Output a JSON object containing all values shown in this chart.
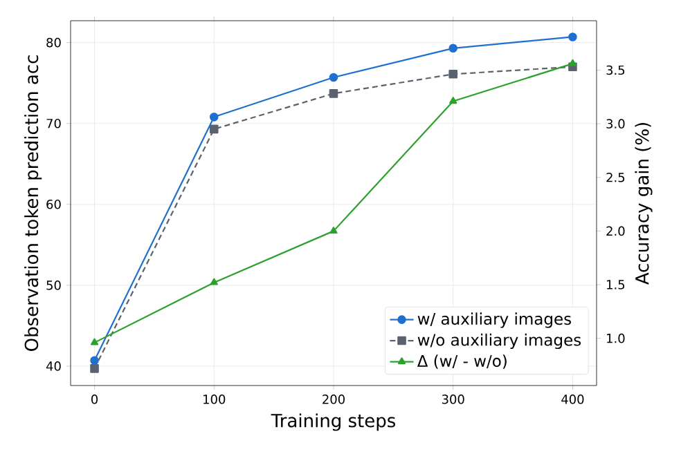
{
  "chart_data": {
    "type": "line",
    "xlabel": "Training steps",
    "ylabel": "Observation token prediction acc",
    "y2label": "Accuracy gain (%)",
    "x": [
      0,
      100,
      200,
      300,
      400
    ],
    "series": [
      {
        "name": "w/ auxiliary images",
        "color": "#1f6fd0",
        "marker": "circle",
        "line_style": "solid",
        "values": [
          40.7,
          70.8,
          75.7,
          79.3,
          80.7
        ]
      },
      {
        "name": "w/o auxiliary images",
        "color": "#5a6270",
        "marker": "square",
        "line_style": "dashed",
        "values": [
          39.7,
          69.3,
          73.7,
          76.1,
          77.0
        ]
      },
      {
        "name": "Δ (w/ - w/o)",
        "color": "#2ca02c",
        "marker": "triangle",
        "line_style": "solid",
        "axis": "y2",
        "values": [
          0.96,
          1.52,
          2.0,
          3.21,
          3.56
        ]
      }
    ],
    "xlim": [
      -20,
      420
    ],
    "xticks": [
      0,
      100,
      200,
      300,
      400
    ],
    "ylim": [
      37.6,
      82.7
    ],
    "yticks": [
      40,
      50,
      60,
      70,
      80
    ],
    "y2lim": [
      0.56,
      3.96
    ],
    "y2ticks": [
      {
        "value": 1,
        "label": "1.0"
      },
      {
        "value": 1.5,
        "label": "1.5"
      },
      {
        "value": 2,
        "label": "2.0"
      },
      {
        "value": 2.5,
        "label": "2.5"
      },
      {
        "value": 3,
        "label": "3.0"
      },
      {
        "value": 3.5,
        "label": "3.5"
      }
    ],
    "grid": true,
    "legend": "bottom right"
  }
}
